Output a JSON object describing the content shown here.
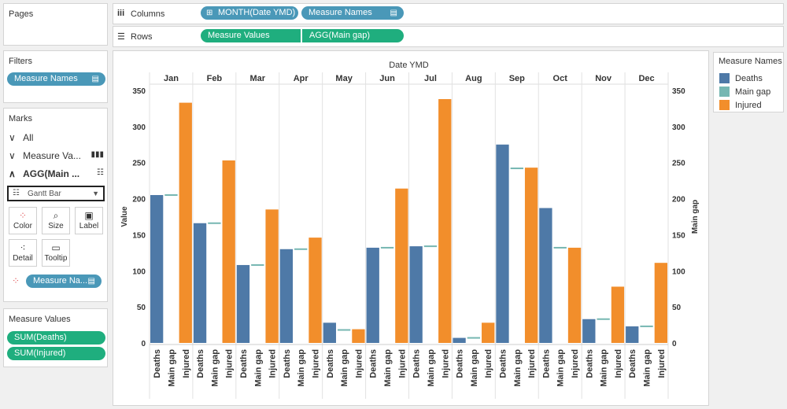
{
  "pages": {
    "title": "Pages"
  },
  "columns": {
    "label": "Columns",
    "pills": [
      "MONTH(Date YMD)",
      "Measure Names"
    ]
  },
  "rows": {
    "label": "Rows",
    "pills": [
      "Measure Values",
      "AGG(Main gap)"
    ]
  },
  "filters": {
    "title": "Filters",
    "pills": [
      "Measure Names"
    ]
  },
  "marks": {
    "title": "Marks",
    "all_label": "All",
    "measure_values_label": "Measure Va...",
    "agg_label": "AGG(Main ...",
    "mark_type": "Gantt Bar",
    "buttons": [
      "Color",
      "Size",
      "Label",
      "Detail",
      "Tooltip"
    ],
    "color_pill": "Measure Na..."
  },
  "measure_values": {
    "title": "Measure Values",
    "pills": [
      "SUM(Deaths)",
      "SUM(Injured)"
    ]
  },
  "legend": {
    "title": "Measure Names",
    "items": [
      {
        "label": "Deaths",
        "color": "#4e79a7"
      },
      {
        "label": "Main gap",
        "color": "#76b7b2"
      },
      {
        "label": "Injured",
        "color": "#f28e2b"
      }
    ]
  },
  "chart_data": {
    "type": "bar",
    "title": "Date YMD",
    "ylabel": "Value",
    "y2label": "Main gap",
    "ylim": [
      0,
      350
    ],
    "yticks": [
      0,
      50,
      100,
      150,
      200,
      250,
      300,
      350
    ],
    "categories": [
      "Jan",
      "Feb",
      "Mar",
      "Apr",
      "May",
      "Jun",
      "Jul",
      "Aug",
      "Sep",
      "Oct",
      "Nov",
      "Dec"
    ],
    "sub_categories": [
      "Deaths",
      "Main gap",
      "Injured"
    ],
    "series": [
      {
        "name": "Deaths",
        "values": [
          205,
          166,
          108,
          130,
          28,
          132,
          134,
          7,
          275,
          187,
          33,
          23
        ]
      },
      {
        "name": "Main gap",
        "values": [
          205,
          166,
          108,
          130,
          18,
          132,
          134,
          7,
          242,
          132,
          33,
          23
        ]
      },
      {
        "name": "Injured",
        "values": [
          333,
          253,
          185,
          146,
          19,
          214,
          338,
          28,
          243,
          132,
          78,
          111
        ]
      }
    ],
    "colors": {
      "Deaths": "#4e79a7",
      "Main gap": "#76b7b2",
      "Injured": "#f28e2b"
    }
  }
}
